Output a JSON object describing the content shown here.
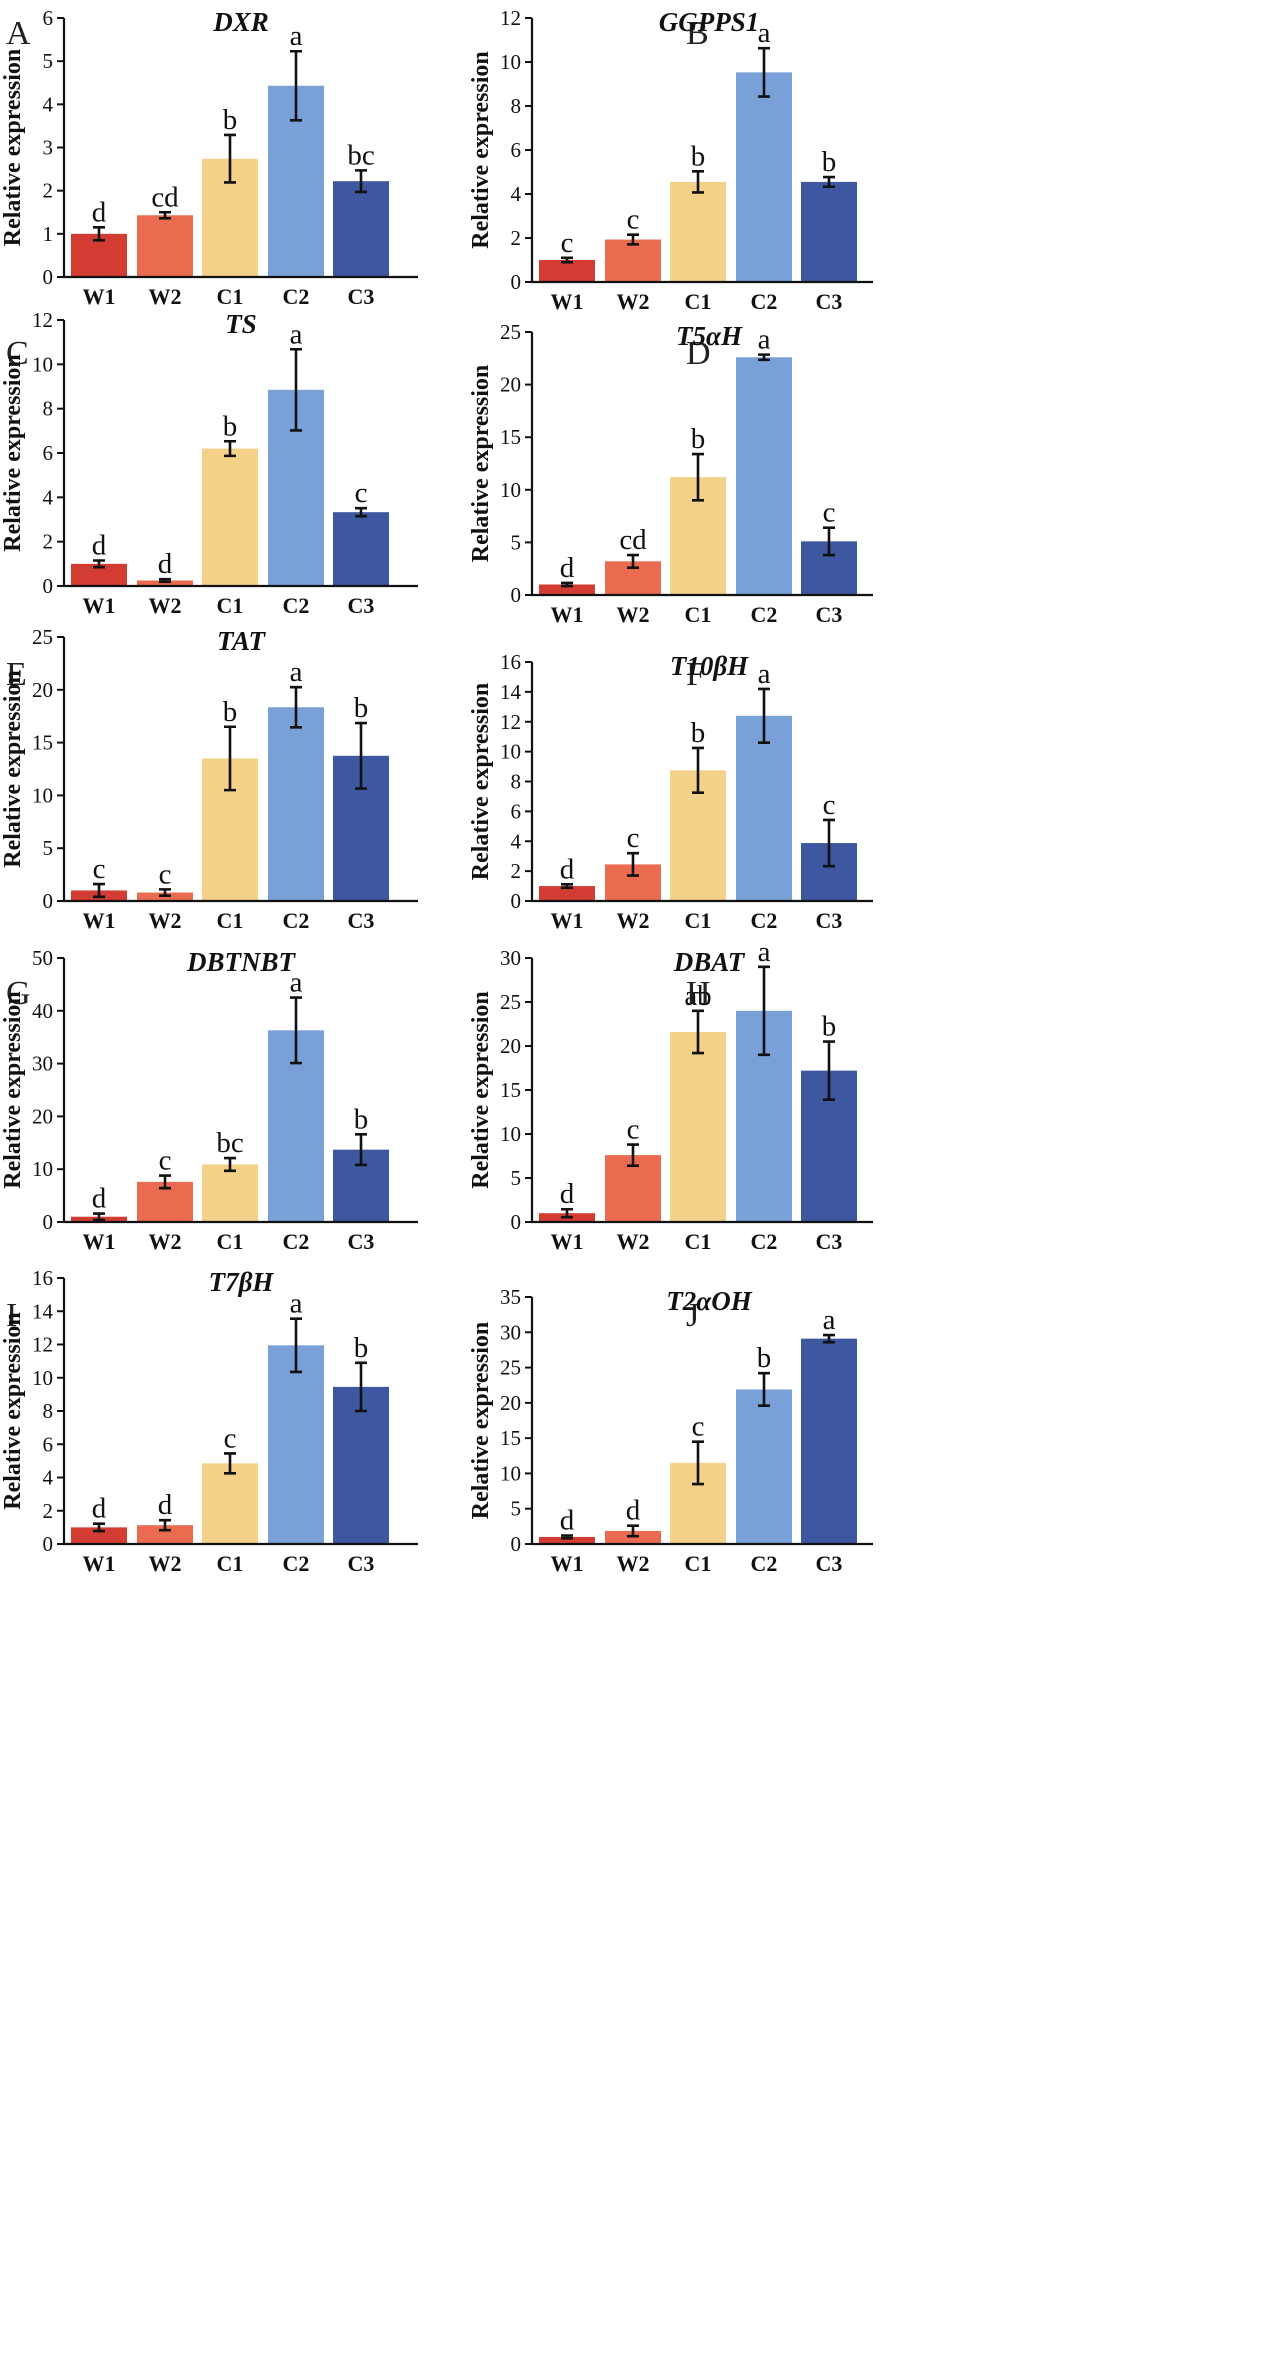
{
  "figure": {
    "ylabel": "Relative expression",
    "categories": [
      "W1",
      "W2",
      "C1",
      "C2",
      "C3"
    ],
    "colors": [
      "#d23c32",
      "#ea6b4f",
      "#f4d188",
      "#79a1d8",
      "#3d57a1"
    ]
  },
  "chart_data": [
    {
      "panel": "A",
      "type": "bar",
      "title": "DXR",
      "ylabel": "Relative expression",
      "categories": [
        "W1",
        "W2",
        "C1",
        "C2",
        "C3"
      ],
      "values": [
        1.0,
        1.43,
        2.74,
        4.43,
        2.22
      ],
      "errors": [
        0.15,
        0.07,
        0.55,
        0.8,
        0.25
      ],
      "letters": [
        "d",
        "cd",
        "b",
        "a",
        "bc"
      ],
      "ylim": [
        0,
        6
      ],
      "yticks": [
        0,
        1,
        2,
        3,
        4,
        5,
        6
      ]
    },
    {
      "panel": "B",
      "type": "bar",
      "title": "GGPPS1",
      "ylabel": "Relative expression",
      "categories": [
        "W1",
        "W2",
        "C1",
        "C2",
        "C3"
      ],
      "values": [
        1.0,
        1.93,
        4.55,
        9.53,
        4.55
      ],
      "errors": [
        0.1,
        0.22,
        0.48,
        1.1,
        0.22
      ],
      "letters": [
        "c",
        "c",
        "b",
        "a",
        "b"
      ],
      "ylim": [
        0,
        12
      ],
      "yticks": [
        0,
        2,
        4,
        6,
        8,
        10,
        12
      ]
    },
    {
      "panel": "C",
      "type": "bar",
      "title": "TS",
      "ylabel": "Relative expression",
      "categories": [
        "W1",
        "W2",
        "C1",
        "C2",
        "C3"
      ],
      "values": [
        1.0,
        0.25,
        6.2,
        8.85,
        3.33
      ],
      "errors": [
        0.15,
        0.06,
        0.33,
        1.83,
        0.18
      ],
      "letters": [
        "d",
        "d",
        "b",
        "a",
        "c"
      ],
      "ylim": [
        0,
        12
      ],
      "yticks": [
        0,
        2,
        4,
        6,
        8,
        10,
        12
      ]
    },
    {
      "panel": "D",
      "type": "bar",
      "title": "T5αH",
      "ylabel": "Relative expression",
      "categories": [
        "W1",
        "W2",
        "C1",
        "C2",
        "C3"
      ],
      "values": [
        1.0,
        3.2,
        11.2,
        22.6,
        5.1
      ],
      "errors": [
        0.15,
        0.6,
        2.2,
        0.25,
        1.3
      ],
      "letters": [
        "d",
        "cd",
        "b",
        "a",
        "c"
      ],
      "ylim": [
        0,
        25
      ],
      "yticks": [
        0,
        5,
        10,
        15,
        20,
        25
      ]
    },
    {
      "panel": "E",
      "type": "bar",
      "title": "TAT",
      "ylabel": "Relative expression",
      "categories": [
        "W1",
        "W2",
        "C1",
        "C2",
        "C3"
      ],
      "values": [
        1.0,
        0.8,
        13.5,
        18.35,
        13.75
      ],
      "errors": [
        0.6,
        0.3,
        3.0,
        1.9,
        3.1
      ],
      "letters": [
        "c",
        "c",
        "b",
        "a",
        "b"
      ],
      "ylim": [
        0,
        25
      ],
      "yticks": [
        0,
        5,
        10,
        15,
        20,
        25
      ]
    },
    {
      "panel": "F",
      "type": "bar",
      "title": "T10βH",
      "ylabel": "Relative expression",
      "categories": [
        "W1",
        "W2",
        "C1",
        "C2",
        "C3"
      ],
      "values": [
        1.0,
        2.45,
        8.75,
        12.4,
        3.88
      ],
      "errors": [
        0.12,
        0.75,
        1.5,
        1.8,
        1.55
      ],
      "letters": [
        "d",
        "c",
        "b",
        "a",
        "c"
      ],
      "ylim": [
        0,
        16
      ],
      "yticks": [
        0,
        2,
        4,
        6,
        8,
        10,
        12,
        14,
        16
      ]
    },
    {
      "panel": "G",
      "type": "bar",
      "title": "DBTNBT",
      "ylabel": "Relative expression",
      "categories": [
        "W1",
        "W2",
        "C1",
        "C2",
        "C3"
      ],
      "values": [
        1.0,
        7.6,
        10.9,
        36.3,
        13.7
      ],
      "errors": [
        0.6,
        1.2,
        1.2,
        6.2,
        2.9
      ],
      "letters": [
        "d",
        "c",
        "bc",
        "a",
        "b"
      ],
      "ylim": [
        0,
        50
      ],
      "yticks": [
        0,
        10,
        20,
        30,
        40,
        50
      ]
    },
    {
      "panel": "H",
      "type": "bar",
      "title": "DBAT",
      "ylabel": "Relative expression",
      "categories": [
        "W1",
        "W2",
        "C1",
        "C2",
        "C3"
      ],
      "values": [
        1.0,
        7.6,
        21.6,
        24.0,
        17.2
      ],
      "errors": [
        0.45,
        1.2,
        2.4,
        5.0,
        3.3
      ],
      "letters": [
        "d",
        "c",
        "ab",
        "a",
        "b"
      ],
      "ylim": [
        0,
        30
      ],
      "yticks": [
        0,
        5,
        10,
        15,
        20,
        25,
        30
      ]
    },
    {
      "panel": "I",
      "type": "bar",
      "title": "T7βH",
      "ylabel": "Relative expression",
      "categories": [
        "W1",
        "W2",
        "C1",
        "C2",
        "C3"
      ],
      "values": [
        1.0,
        1.13,
        4.85,
        11.95,
        9.45
      ],
      "errors": [
        0.22,
        0.3,
        0.6,
        1.6,
        1.45
      ],
      "letters": [
        "d",
        "d",
        "c",
        "a",
        "b"
      ],
      "ylim": [
        0,
        16
      ],
      "yticks": [
        0,
        2,
        4,
        6,
        8,
        10,
        12,
        14,
        16
      ]
    },
    {
      "panel": "J",
      "type": "bar",
      "title": "T2αOH",
      "ylabel": "Relative expression",
      "categories": [
        "W1",
        "W2",
        "C1",
        "C2",
        "C3"
      ],
      "values": [
        1.0,
        1.85,
        11.5,
        21.9,
        29.1
      ],
      "errors": [
        0.2,
        0.75,
        3.0,
        2.3,
        0.5
      ],
      "letters": [
        "d",
        "d",
        "c",
        "b",
        "a"
      ],
      "ylim": [
        0,
        35
      ],
      "yticks": [
        0,
        5,
        10,
        15,
        20,
        25,
        30,
        35
      ]
    }
  ]
}
